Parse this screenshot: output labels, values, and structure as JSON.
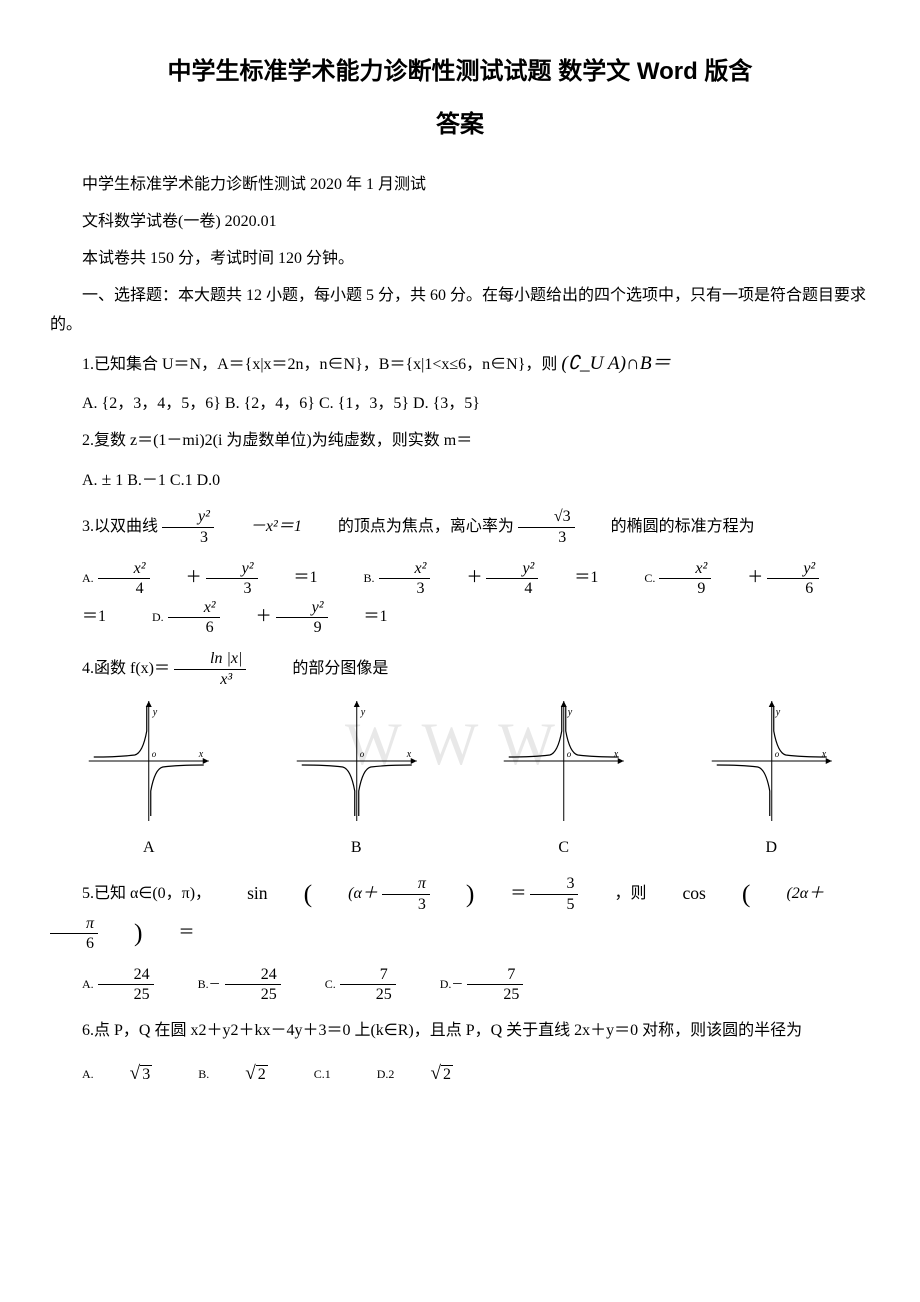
{
  "title_line1": "中学生标准学术能力诊断性测试试题 数学文 Word 版含",
  "title_line2": "答案",
  "subtitle": "中学生标准学术能力诊断性测试 2020 年 1 月测试",
  "paper_info": "文科数学试卷(一卷) 2020.01",
  "exam_info": "本试卷共 150 分，考试时间 120 分钟。",
  "section1": "一、选择题：本大题共 12 小题，每小题 5 分，共 60 分。在每小题给出的四个选项中，只有一项是符合题目要求的。",
  "watermark_text": "WWW",
  "q1": {
    "stem_pre": "1.已知集合 U＝N，A＝{x|x＝2n，n∈N}，B＝{x|1<x≤6，n∈N}，则",
    "stem_expr": "(∁_U A)∩B＝",
    "optA": "A. {2，3，4，5，6}",
    "optB": "B. {2，4，6}",
    "optC": "C. {1，3，5}",
    "optD": "D. {3，5}"
  },
  "q2": {
    "stem": "2.复数 z＝(1－mi)2(i 为虚数单位)为纯虚数，则实数 m＝",
    "opts_pre": "A.",
    "optA_sym": "±",
    "optA_tail": "1",
    "optB": "B.－1",
    "optC": "C.1",
    "optD": "D.0"
  },
  "q3": {
    "stem_pre": "3.以双曲线",
    "hyp_num": "y²",
    "hyp_den": "3",
    "hyp_tail": "－x²＝1",
    "stem_mid": "的顶点为焦点，离心率为",
    "ecc_num": "√3",
    "ecc_den": "3",
    "stem_end": "的椭圆的标准方程为",
    "A_x_den": "4",
    "A_y_den": "3",
    "B_x_den": "3",
    "B_y_den": "4",
    "C_x_den": "9",
    "C_y_den": "6",
    "D_x_den": "6",
    "D_y_den": "9",
    "eq1": "＝1",
    "labelA": "A.",
    "labelB": "B.",
    "labelC": "C.",
    "labelD": "D.",
    "x2": "x²",
    "y2": "y²",
    "plus": "＋"
  },
  "q4": {
    "stem_pre": "4.函数 f(x)＝",
    "f_num": "ln |x|",
    "f_den": "x³",
    "stem_end": "的部分图像是",
    "labels": [
      "A",
      "B",
      "C",
      "D"
    ],
    "axis_color": "#000",
    "curve_color": "#000",
    "curve_width": 1.2,
    "graph_paths": {
      "A": [
        "M 5 56 Q 30 56 46 54 Q 54 52 58 30 L 58 5",
        "M 62 115 L 62 90 Q 66 68 74 66 Q 90 64 115 64"
      ],
      "B": [
        "M 5 64 Q 30 64 46 66 Q 54 68 58 90 L 58 115",
        "M 62 115 L 62 90 Q 66 68 74 66 Q 90 64 115 64"
      ],
      "C": [
        "M 5 56 Q 30 56 46 54 Q 54 52 58 30 L 58 5",
        "M 62 5 L 62 30 Q 66 52 74 54 Q 90 56 115 56"
      ],
      "D": [
        "M 5 64 Q 30 64 46 66 Q 54 68 58 90 L 58 115",
        "M 62 5 L 62 30 Q 66 52 74 54 Q 90 56 115 56"
      ]
    }
  },
  "q5": {
    "stem_pre": "5.已知 α∈(0，π)，",
    "sin_text": "sin",
    "sin_arg_pre": "(α＋",
    "pi_over_3_num": "π",
    "pi_over_3_den": "3",
    "close_paren": ")",
    "eq": "＝",
    "three_fifths_num": "3",
    "three_fifths_den": "5",
    "comma_then": "，则",
    "cos_text": "cos",
    "cos_arg_pre": "(2α＋",
    "pi_over_6_num": "π",
    "pi_over_6_den": "6",
    "cos_tail": "＝",
    "A_num": "24",
    "A_den": "25",
    "B_num": "24",
    "B_den": "25",
    "C_num": "7",
    "C_den": "25",
    "D_num": "7",
    "D_den": "25",
    "labelA": "A.",
    "labelB": "B.－",
    "labelC": "C.",
    "labelD": "D.－"
  },
  "q6": {
    "stem": "6.点 P，Q 在圆 x2＋y2＋kx－4y＋3＝0 上(k∈R)，且点 P，Q 关于直线 2x＋y＝0 对称，则该圆的半径为",
    "labelA": "A.",
    "optA_val": "3",
    "labelB": "B.",
    "optB_val": "2",
    "optC": "C.1",
    "labelD": "D.2",
    "optD_val": "2"
  }
}
